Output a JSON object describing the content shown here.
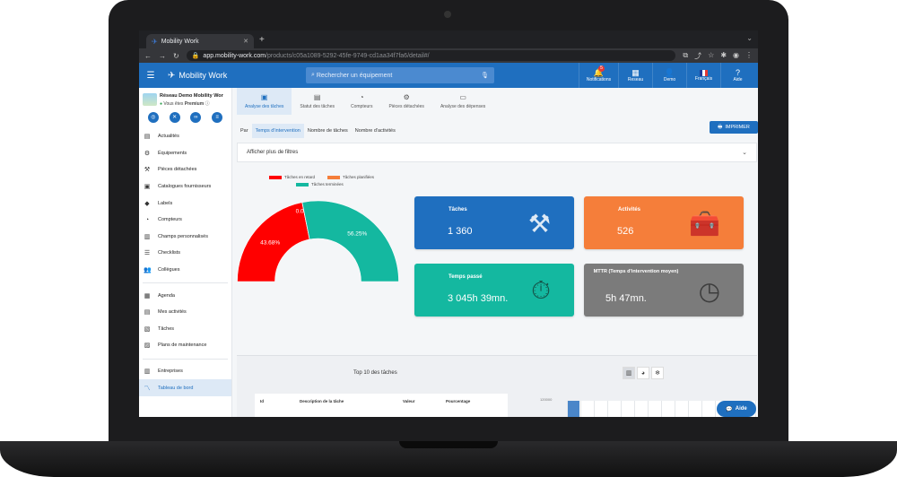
{
  "browser": {
    "tab_title": "Mobility Work",
    "url_host": "app.mobility-work.com",
    "url_path": "/products/c05a1089-5292-45fe-9749-cd1aa34f7fa6/detail#/"
  },
  "header": {
    "brand": "Mobility Work",
    "search_placeholder": "Rechercher un équipement",
    "nav": [
      {
        "label": "Notifications",
        "badge": "5"
      },
      {
        "label": "Reseau"
      },
      {
        "label": "Demo"
      },
      {
        "label": "Français"
      },
      {
        "label": "Aide"
      }
    ]
  },
  "sidebar": {
    "org_name": "Réseau Demo Mobility Wor",
    "org_status_prefix": "Vous êtes",
    "org_status": "Premium",
    "items": [
      {
        "label": "Actualités",
        "icon": "news-icon"
      },
      {
        "label": "Équipements",
        "icon": "equipment-icon"
      },
      {
        "label": "Pièces détachées",
        "icon": "parts-icon"
      },
      {
        "label": "Catalogues fournisseurs",
        "icon": "catalog-icon"
      },
      {
        "label": "Labels",
        "icon": "tag-icon"
      },
      {
        "label": "Compteurs",
        "icon": "gauge-icon"
      },
      {
        "label": "Champs personnalisés",
        "icon": "fields-icon"
      },
      {
        "label": "Checklists",
        "icon": "checklist-icon"
      },
      {
        "label": "Collègues",
        "icon": "people-icon"
      },
      {
        "label": "Agenda",
        "icon": "calendar-icon"
      },
      {
        "label": "Mes activités",
        "icon": "activities-icon"
      },
      {
        "label": "Tâches",
        "icon": "tasks-icon"
      },
      {
        "label": "Plans de maintenance",
        "icon": "plan-icon"
      },
      {
        "label": "Entreprises",
        "icon": "company-icon"
      },
      {
        "label": "Tableau de bord",
        "icon": "dashboard-icon"
      }
    ]
  },
  "tabs": [
    "Analyse des tâches",
    "Statut des tâches",
    "Compteurs",
    "Pièces détachées",
    "Analyse des dépenses"
  ],
  "filters": {
    "prefix": "Par",
    "options": [
      "Temps d'intervention",
      "Nombre de tâches",
      "Nombre d'activités"
    ],
    "more_filters": "Afficher plus de filtres",
    "print_label": "IMPRIMER"
  },
  "chart_data": {
    "type": "pie",
    "style": "half-donut",
    "legend": [
      "Tâches en retard",
      "Tâches planifiées",
      "Tâches terminées"
    ],
    "values": [
      43.68,
      0.07,
      56.25
    ],
    "value_labels": [
      "43.68%",
      "0.07%",
      "56.25%"
    ],
    "colors": [
      "#ff0000",
      "#f57e3a",
      "#14b8a0"
    ],
    "legend_position": "top"
  },
  "cards": {
    "taches": {
      "label": "Tâches",
      "value": "1 360"
    },
    "activites": {
      "label": "Activités",
      "value": "526"
    },
    "temps": {
      "label": "Temps passé",
      "value": "3 045h 39mn."
    },
    "mttr": {
      "label": "MTTR (Temps d'intervention moyen)",
      "value": "5h 47mn."
    }
  },
  "top10": {
    "title": "Top 10 des tâches",
    "columns": [
      "Id",
      "Description de la tâche",
      "Valeur",
      "Pourcentage"
    ],
    "y_tick_top": "120000"
  },
  "help_button": "Aide"
}
